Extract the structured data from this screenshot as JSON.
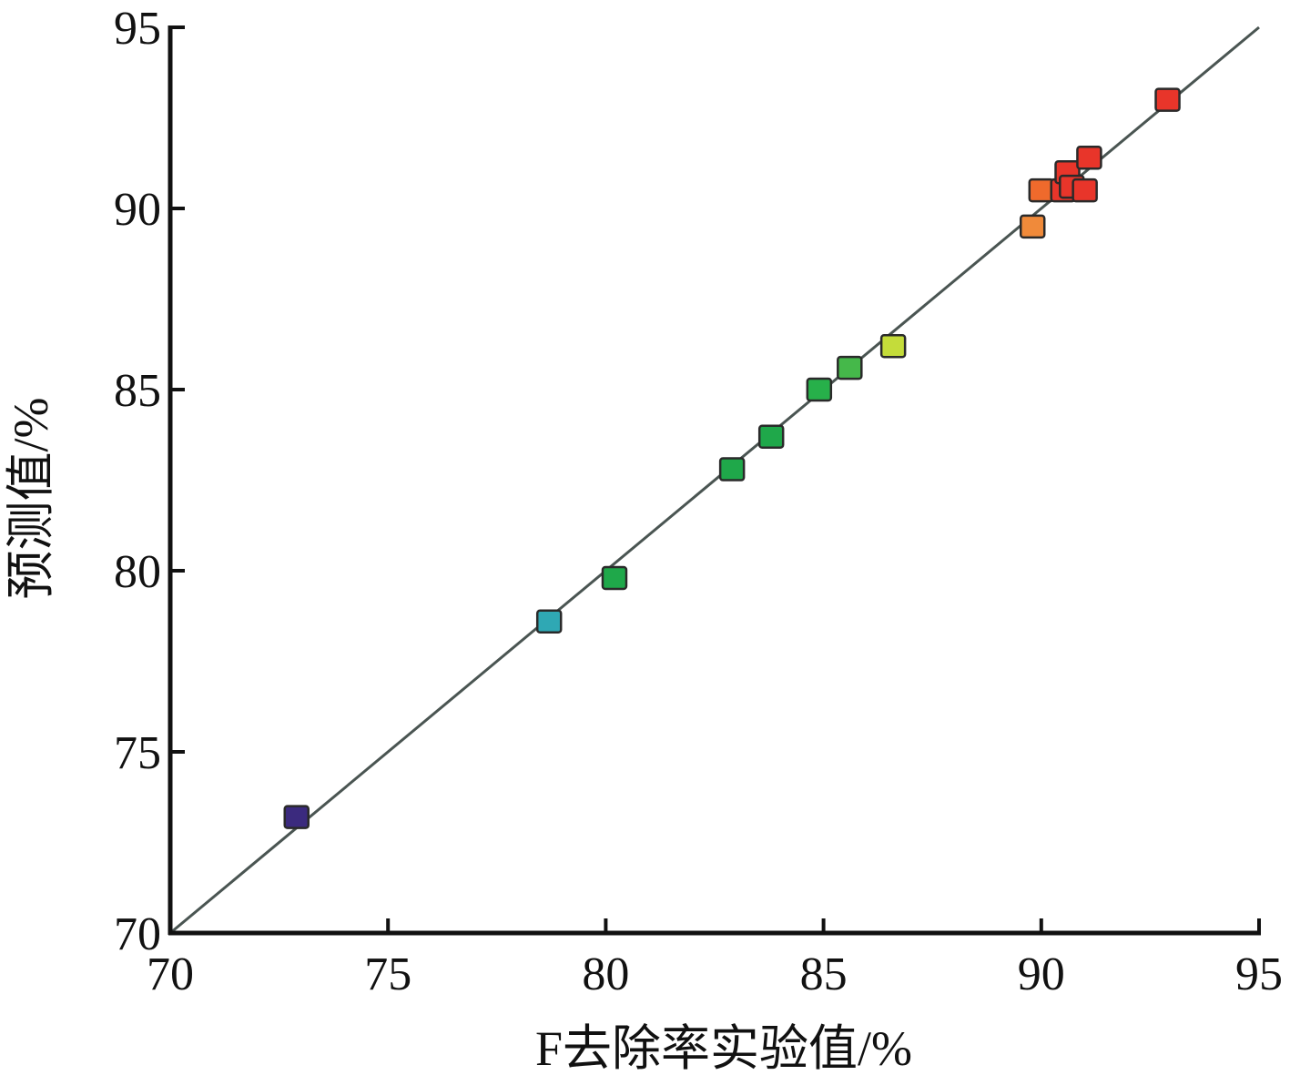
{
  "chart_data": {
    "type": "scatter",
    "title": "",
    "xlabel": "F去除率实验值/%",
    "ylabel": "预测值/%",
    "xlim": [
      70,
      95
    ],
    "ylim": [
      70,
      95
    ],
    "x_ticks": [
      70,
      75,
      80,
      85,
      90,
      95
    ],
    "y_ticks": [
      70,
      75,
      80,
      85,
      90,
      95
    ],
    "grid": false,
    "legend": "none",
    "reference_line": {
      "from": [
        70,
        70
      ],
      "to": [
        95,
        95
      ],
      "color": "#4a5552"
    },
    "points": [
      {
        "x": 72.9,
        "y": 73.2,
        "color": "#3b2a7e"
      },
      {
        "x": 78.7,
        "y": 78.6,
        "color": "#2fa8b4"
      },
      {
        "x": 80.2,
        "y": 79.8,
        "color": "#1fa84a"
      },
      {
        "x": 82.9,
        "y": 82.8,
        "color": "#1fa84a"
      },
      {
        "x": 83.8,
        "y": 83.7,
        "color": "#1fa84a"
      },
      {
        "x": 84.9,
        "y": 85.0,
        "color": "#27b04a"
      },
      {
        "x": 85.6,
        "y": 85.6,
        "color": "#45b84a"
      },
      {
        "x": 86.6,
        "y": 86.2,
        "color": "#c4dc3a"
      },
      {
        "x": 89.8,
        "y": 89.5,
        "color": "#f08a3a"
      },
      {
        "x": 90.0,
        "y": 90.5,
        "color": "#ef6a2c"
      },
      {
        "x": 90.5,
        "y": 90.5,
        "color": "#e8352a"
      },
      {
        "x": 90.6,
        "y": 91.0,
        "color": "#e8352a"
      },
      {
        "x": 90.7,
        "y": 90.6,
        "color": "#e8352a"
      },
      {
        "x": 91.0,
        "y": 90.5,
        "color": "#e8352a"
      },
      {
        "x": 91.1,
        "y": 91.4,
        "color": "#e8352a"
      },
      {
        "x": 92.9,
        "y": 93.0,
        "color": "#e8352a"
      }
    ]
  }
}
